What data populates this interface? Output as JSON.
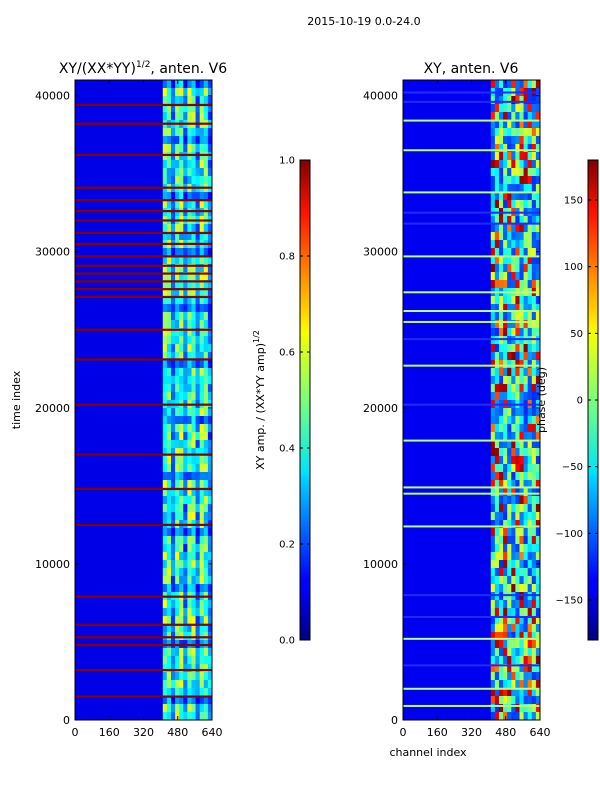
{
  "figure": {
    "suptitle": "2015-10-19 0.0-24.0"
  },
  "chart_data": [
    {
      "type": "heatmap",
      "title": "XY/(XX*YY)",
      "title_superscript": "1/2",
      "title_suffix": ", anten. V6",
      "xlabel": "",
      "ylabel": "time index",
      "xlim": [
        0,
        640
      ],
      "ylim": [
        0,
        41000
      ],
      "xticks": [
        0,
        160,
        320,
        480,
        640
      ],
      "yticks": [
        0,
        10000,
        20000,
        30000,
        40000
      ],
      "band_start_channel": 410,
      "band_end_channel": 640,
      "background_value": 0.1,
      "band_value_range": [
        0.3,
        0.6
      ],
      "saturated_rows": [
        1500,
        3200,
        4800,
        5300,
        6100,
        7900,
        12500,
        14800,
        17000,
        20200,
        23100,
        25000,
        27100,
        27600,
        28100,
        28600,
        29100,
        29700,
        30500,
        31200,
        32000,
        32600,
        33300,
        34100,
        36200,
        38200,
        39400
      ],
      "colorbar": {
        "label": "XY amp. / (XX*YY amp)",
        "label_superscript": "1/2",
        "ticks": [
          0.0,
          0.2,
          0.4,
          0.6,
          0.8,
          1.0
        ],
        "tick_labels": [
          "0.0",
          "0.2",
          "0.4",
          "0.6",
          "0.8",
          "1.0"
        ],
        "range": [
          0.0,
          1.0
        ]
      }
    },
    {
      "type": "heatmap",
      "title": "XY, anten. V6",
      "xlabel": "channel index",
      "ylabel": "",
      "xlim": [
        0,
        640
      ],
      "ylim": [
        0,
        41000
      ],
      "xticks": [
        0,
        160,
        320,
        480,
        640
      ],
      "yticks": [
        0,
        10000,
        20000,
        30000,
        40000
      ],
      "band_start_channel": 410,
      "band_end_channel": 640,
      "background_value": -140,
      "saturated_rows": [
        900,
        2000,
        3500,
        5200,
        6600,
        8000,
        12400,
        14500,
        14900,
        17900,
        20200,
        22700,
        24400,
        25500,
        26200,
        27400,
        29700,
        31800,
        32500,
        33800,
        36500,
        38400,
        39600,
        40200
      ],
      "colorbar": {
        "label": "phase (deg)",
        "ticks": [
          -150,
          -100,
          -50,
          0,
          50,
          100,
          150
        ],
        "tick_labels": [
          "−150",
          "−100",
          "−50",
          "0",
          "50",
          "100",
          "150"
        ],
        "range": [
          -180,
          180
        ]
      }
    }
  ]
}
